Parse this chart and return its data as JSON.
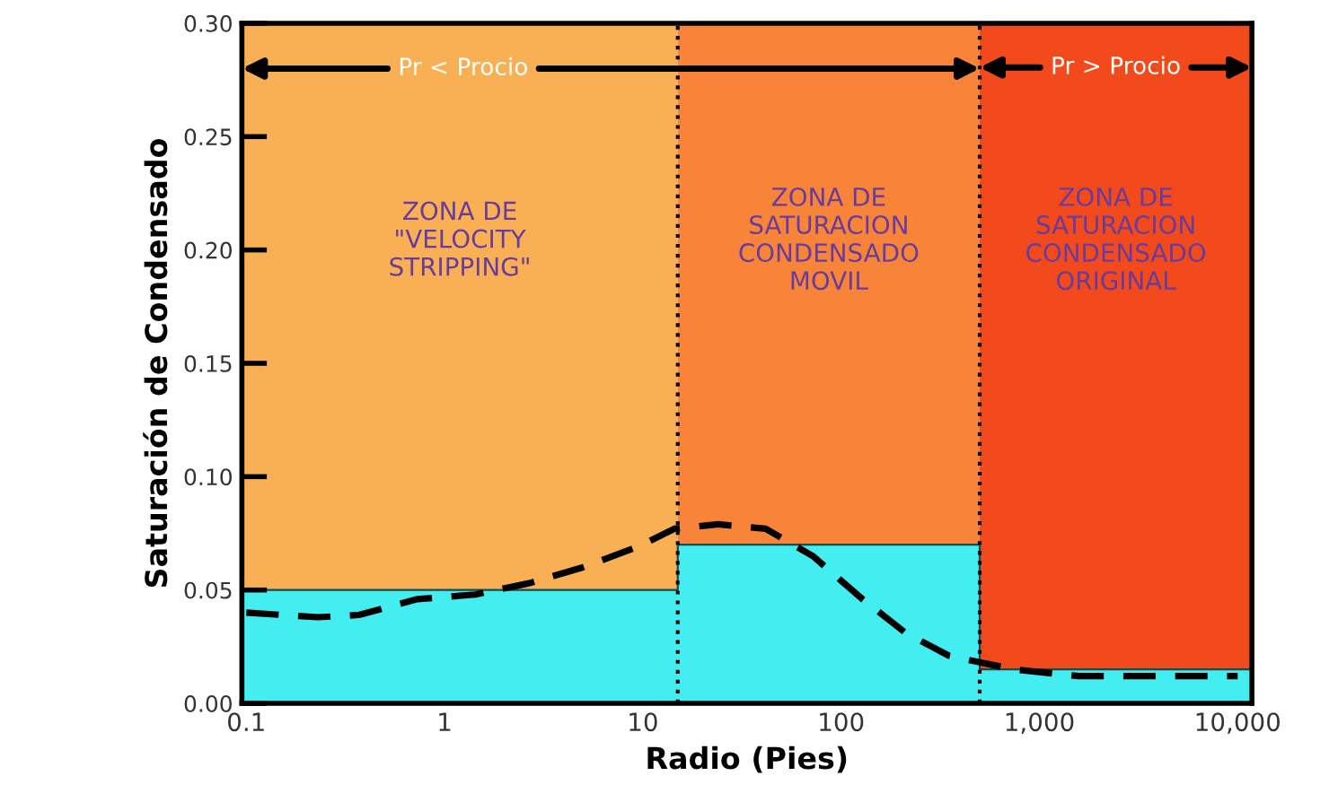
{
  "chart_data": {
    "type": "line",
    "xlabel": "Radio (Pies)",
    "ylabel": "Saturación de Condensado",
    "log": "x",
    "xlim": [
      0.095,
      11800
    ],
    "ylim": [
      0,
      0.3
    ],
    "xticks": [
      0.1,
      1,
      10,
      100,
      {
        "value": 1000,
        "label": "1,000"
      },
      {
        "value": 10000,
        "label": "10,000"
      }
    ],
    "yticks": [
      {
        "value": 0,
        "label": "0.00"
      },
      {
        "value": 0.05,
        "label": "0.05"
      },
      {
        "value": 0.1,
        "label": "0.10"
      },
      {
        "value": 0.15,
        "label": "0.15"
      },
      {
        "value": 0.2,
        "label": "0.20"
      },
      {
        "value": 0.25,
        "label": "0.25"
      },
      {
        "value": 0.3,
        "label": "0.30"
      }
    ],
    "grid": false,
    "legend": false,
    "bands": [
      {
        "axis": "x",
        "from": 0.095,
        "to": 15,
        "label": "ZONA DE\n\"VELOCITY\nSTRIPPING\"",
        "color": "#f9b055"
      },
      {
        "axis": "x",
        "from": 15,
        "to": 500,
        "label": "ZONA DE\nSATURACION\nCONDENSADO\nMOVIL",
        "color": "#f8843a"
      },
      {
        "axis": "x",
        "from": 500,
        "to": 11800,
        "label": "ZONA DE\nSATURACION\nCONDENSADO\nORIGINAL",
        "color": "#f24a1c"
      }
    ],
    "ref_lines": [
      {
        "axis": "x",
        "value": 15,
        "color": "#000000",
        "line_style": "dotted"
      },
      {
        "axis": "x",
        "value": 500,
        "color": "#000000",
        "line_style": "dotted"
      }
    ],
    "series": [
      {
        "type": "area",
        "color": "#44eef0",
        "x": [
          0.095,
          15,
          15,
          500,
          500,
          11800
        ],
        "values": [
          0.05,
          0.05,
          0.07,
          0.07,
          0.015,
          0.015
        ]
      },
      {
        "color": "#000000",
        "line_style": "dashed",
        "marker": "none",
        "x": [
          0.1,
          0.23,
          0.37,
          0.73,
          1.43,
          2.67,
          4.97,
          9.4,
          14.4,
          24,
          41.6,
          72,
          128,
          212,
          350,
          740,
          1570,
          10000
        ],
        "values": [
          0.04,
          0.038,
          0.039,
          0.046,
          0.048,
          0.053,
          0.06,
          0.069,
          0.077,
          0.079,
          0.077,
          0.065,
          0.046,
          0.031,
          0.021,
          0.015,
          0.012,
          0.012
        ]
      }
    ],
    "annotations": [
      {
        "text": "Pr < Procio",
        "x": 500,
        "y": 0.28
      },
      "Pr > Procio"
    ]
  }
}
